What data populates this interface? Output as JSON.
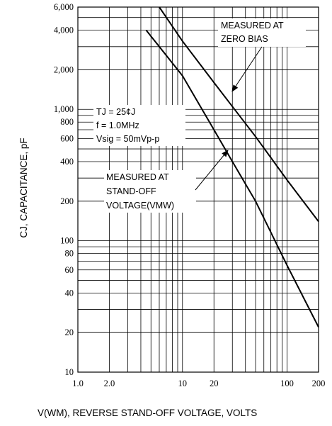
{
  "chart_data": {
    "type": "line",
    "x_scale": "log",
    "y_scale": "log",
    "xlim": [
      1,
      200
    ],
    "ylim": [
      10,
      6000
    ],
    "xlabel": "V(WM), REVERSE STAND-OFF VOLTAGE, VOLTS",
    "ylabel": "CJ, CAPACITANCE, pF",
    "grid": true,
    "x_ticks": [
      {
        "value": 1,
        "label": "1.0"
      },
      {
        "value": 2,
        "label": "2.0"
      },
      {
        "value": 10,
        "label": "10"
      },
      {
        "value": 20,
        "label": "20"
      },
      {
        "value": 100,
        "label": "100"
      },
      {
        "value": 200,
        "label": "200"
      }
    ],
    "y_ticks": [
      {
        "value": 10,
        "label": "10"
      },
      {
        "value": 20,
        "label": "20"
      },
      {
        "value": 40,
        "label": "40"
      },
      {
        "value": 60,
        "label": "60"
      },
      {
        "value": 80,
        "label": "80"
      },
      {
        "value": 100,
        "label": "100"
      },
      {
        "value": 200,
        "label": "200"
      },
      {
        "value": 400,
        "label": "400"
      },
      {
        "value": 600,
        "label": "600"
      },
      {
        "value": 800,
        "label": "800"
      },
      {
        "value": 1000,
        "label": "1,000"
      },
      {
        "value": 2000,
        "label": "2,000"
      },
      {
        "value": 4000,
        "label": "4,000"
      },
      {
        "value": 6000,
        "label": "6,000"
      }
    ],
    "series": [
      {
        "name": "MEASURED AT ZERO BIAS",
        "points": [
          [
            6.0,
            6000
          ],
          [
            10,
            3300
          ],
          [
            20,
            1600
          ],
          [
            30,
            1050
          ],
          [
            50,
            620
          ],
          [
            100,
            290
          ],
          [
            200,
            140
          ]
        ]
      },
      {
        "name": "MEASURED AT STAND-OFF VOLTAGE(VMW)",
        "points": [
          [
            4.5,
            4000
          ],
          [
            10,
            1800
          ],
          [
            20,
            700
          ],
          [
            30,
            400
          ],
          [
            50,
            200
          ],
          [
            100,
            65
          ],
          [
            200,
            22
          ]
        ]
      }
    ],
    "annotations": {
      "zero_bias": {
        "line1": "MEASURED AT",
        "line2": "ZERO BIAS"
      },
      "standoff": {
        "line1": "MEASURED AT",
        "line2": "STAND-OFF",
        "line3": "VOLTAGE(VMW)"
      },
      "conditions": {
        "line1": "TJ = 25¢J",
        "line2": "f = 1.0MHz",
        "line3": "Vsig = 50mVp-p"
      }
    }
  }
}
